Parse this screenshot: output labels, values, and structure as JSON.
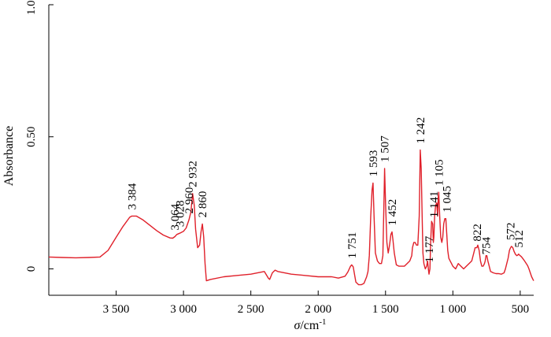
{
  "chart_data": {
    "type": "line",
    "title": "",
    "xlabel_symbol": "σ",
    "xlabel_unit": "/cm",
    "xlabel_exp": "-1",
    "ylabel": "Absorbance",
    "xlim": [
      4000,
      400
    ],
    "ylim": [
      -0.1,
      1.0
    ],
    "x_reversed": true,
    "grid": false,
    "line_color": "#e0202a",
    "x_ticks": [
      {
        "value": 3500,
        "label": "3 500"
      },
      {
        "value": 3000,
        "label": "3 000"
      },
      {
        "value": 2500,
        "label": "2 500"
      },
      {
        "value": 2000,
        "label": "2 000"
      },
      {
        "value": 1500,
        "label": "1 500"
      },
      {
        "value": 1000,
        "label": "1 000"
      },
      {
        "value": 500,
        "label": "500"
      }
    ],
    "y_ticks": [
      {
        "value": 0,
        "label": "0"
      },
      {
        "value": 0.5,
        "label": "0.50"
      },
      {
        "value": 1.0,
        "label": "1.00"
      }
    ],
    "series": [
      {
        "x": [
          4000,
          3900,
          3800,
          3700,
          3620,
          3560,
          3500,
          3450,
          3400,
          3384,
          3350,
          3300,
          3250,
          3200,
          3150,
          3100,
          3080,
          3064,
          3050,
          3028,
          3000,
          2980,
          2960,
          2945,
          2932,
          2920,
          2910,
          2895,
          2880,
          2870,
          2860,
          2850,
          2840,
          2830,
          2800,
          2700,
          2600,
          2500,
          2400,
          2370,
          2360,
          2340,
          2320,
          2300,
          2200,
          2100,
          2000,
          1900,
          1850,
          1800,
          1780,
          1760,
          1751,
          1740,
          1720,
          1700,
          1680,
          1660,
          1640,
          1630,
          1620,
          1610,
          1600,
          1593,
          1585,
          1575,
          1560,
          1545,
          1530,
          1520,
          1510,
          1507,
          1500,
          1490,
          1480,
          1470,
          1460,
          1452,
          1445,
          1435,
          1420,
          1400,
          1380,
          1360,
          1340,
          1320,
          1305,
          1300,
          1290,
          1280,
          1270,
          1260,
          1250,
          1242,
          1235,
          1228,
          1222,
          1215,
          1205,
          1195,
          1188,
          1182,
          1177,
          1170,
          1165,
          1158,
          1150,
          1145,
          1141,
          1135,
          1128,
          1120,
          1113,
          1109,
          1105,
          1098,
          1090,
          1082,
          1075,
          1068,
          1060,
          1052,
          1045,
          1038,
          1030,
          1020,
          1010,
          1000,
          980,
          960,
          940,
          920,
          900,
          880,
          860,
          845,
          835,
          822,
          815,
          805,
          795,
          785,
          775,
          765,
          760,
          754,
          748,
          740,
          730,
          720,
          700,
          680,
          660,
          640,
          620,
          610,
          600,
          590,
          580,
          572,
          565,
          555,
          545,
          535,
          525,
          518,
          512,
          505,
          495,
          485,
          475,
          465,
          455,
          445,
          435,
          425,
          415,
          405,
          400
        ],
        "y": [
          0.045,
          0.043,
          0.042,
          0.043,
          0.045,
          0.07,
          0.12,
          0.16,
          0.195,
          0.2,
          0.2,
          0.185,
          0.165,
          0.145,
          0.128,
          0.117,
          0.116,
          0.122,
          0.13,
          0.135,
          0.142,
          0.155,
          0.185,
          0.215,
          0.285,
          0.24,
          0.15,
          0.08,
          0.09,
          0.14,
          0.17,
          0.12,
          0.02,
          -0.045,
          -0.04,
          -0.03,
          -0.025,
          -0.02,
          -0.01,
          -0.035,
          -0.04,
          -0.015,
          -0.005,
          -0.01,
          -0.02,
          -0.025,
          -0.03,
          -0.03,
          -0.035,
          -0.028,
          -0.012,
          0.01,
          0.015,
          0.008,
          -0.05,
          -0.06,
          -0.06,
          -0.055,
          -0.03,
          -0.01,
          0.05,
          0.2,
          0.3,
          0.325,
          0.2,
          0.06,
          0.03,
          0.02,
          0.02,
          0.05,
          0.3,
          0.38,
          0.25,
          0.1,
          0.06,
          0.09,
          0.13,
          0.14,
          0.11,
          0.06,
          0.015,
          0.01,
          0.01,
          0.01,
          0.02,
          0.03,
          0.05,
          0.08,
          0.1,
          0.1,
          0.09,
          0.09,
          0.2,
          0.45,
          0.38,
          0.2,
          0.06,
          0.02,
          0.0,
          0.01,
          0.03,
          0.0,
          -0.02,
          0.0,
          0.1,
          0.18,
          0.17,
          0.1,
          0.12,
          0.2,
          0.24,
          0.25,
          0.2,
          0.27,
          0.29,
          0.2,
          0.12,
          0.1,
          0.12,
          0.17,
          0.19,
          0.19,
          0.13,
          0.07,
          0.04,
          0.03,
          0.02,
          0.01,
          0.0,
          0.02,
          0.01,
          0.0,
          0.01,
          0.02,
          0.03,
          0.06,
          0.08,
          0.08,
          0.09,
          0.07,
          0.03,
          0.01,
          0.01,
          0.02,
          0.03,
          0.05,
          0.05,
          0.03,
          0.01,
          -0.01,
          -0.015,
          -0.018,
          -0.018,
          -0.02,
          -0.015,
          0.0,
          0.02,
          0.04,
          0.07,
          0.08,
          0.085,
          0.08,
          0.065,
          0.055,
          0.05,
          0.052,
          0.056,
          0.052,
          0.048,
          0.042,
          0.035,
          0.028,
          0.02,
          0.012,
          0.0,
          -0.015,
          -0.03,
          -0.04,
          -0.045
        ]
      }
    ],
    "annotations": [
      {
        "label": "3 384",
        "x": 3384,
        "y": 0.2
      },
      {
        "label": "3 064",
        "x": 3064,
        "y": 0.122
      },
      {
        "label": "3 028",
        "x": 3028,
        "y": 0.135
      },
      {
        "label": "2 960",
        "x": 2960,
        "y": 0.185
      },
      {
        "label": "2 932",
        "x": 2932,
        "y": 0.285
      },
      {
        "label": "2 860",
        "x": 2860,
        "y": 0.17
      },
      {
        "label": "1 751",
        "x": 1751,
        "y": 0.015
      },
      {
        "label": "1 593",
        "x": 1593,
        "y": 0.325
      },
      {
        "label": "1 507",
        "x": 1507,
        "y": 0.38
      },
      {
        "label": "1 452",
        "x": 1452,
        "y": 0.14
      },
      {
        "label": "1 242",
        "x": 1242,
        "y": 0.45
      },
      {
        "label": "1 177",
        "x": 1177,
        "y": 0.0
      },
      {
        "label": "1 141",
        "x": 1141,
        "y": 0.17
      },
      {
        "label": "1 105",
        "x": 1105,
        "y": 0.29
      },
      {
        "label": "1 045",
        "x": 1045,
        "y": 0.19
      },
      {
        "label": "822",
        "x": 822,
        "y": 0.08
      },
      {
        "label": "754",
        "x": 754,
        "y": 0.03
      },
      {
        "label": "572",
        "x": 572,
        "y": 0.085
      },
      {
        "label": "512",
        "x": 512,
        "y": 0.056
      }
    ]
  }
}
